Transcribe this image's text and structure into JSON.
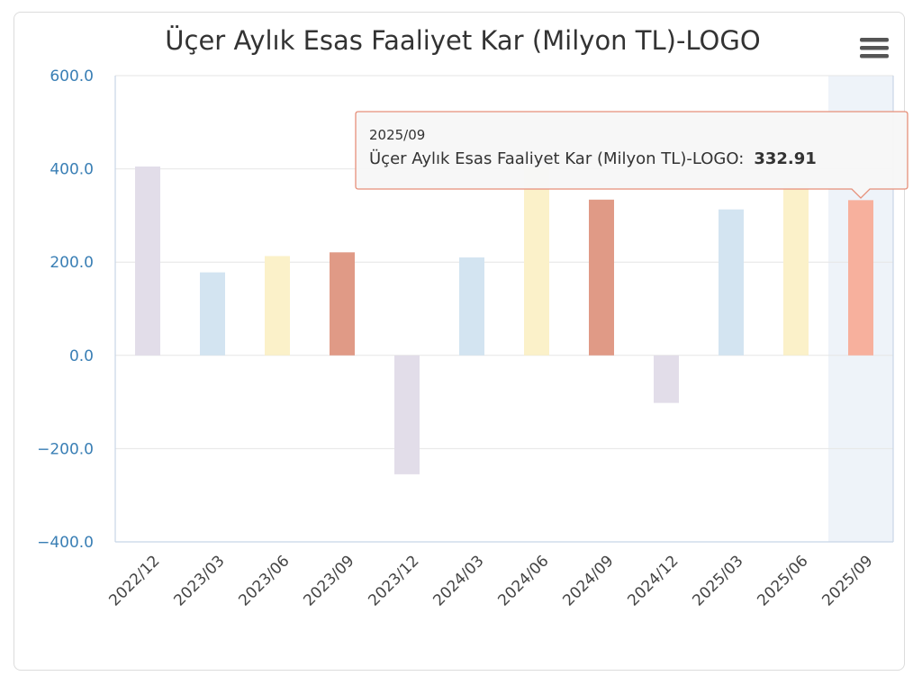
{
  "colors": {
    "palette": [
      "#e2dde9",
      "#d3e4f1",
      "#fbf1c9",
      "#e09a86"
    ],
    "highlight_bar": "#f7b09d",
    "hover_band": "#eef3f9",
    "tooltip_border": "#e6907a"
  },
  "menu": {
    "icon": "hamburger-menu-icon"
  },
  "chart_data": {
    "type": "bar",
    "title": "Üçer Aylık Esas Faaliyet Kar (Milyon TL)-LOGO",
    "xlabel": "",
    "ylabel": "",
    "ylim": [
      -400,
      600
    ],
    "yticks": [
      "600.0",
      "400.0",
      "200.0",
      "0.0",
      "−200.0",
      "−400.0"
    ],
    "ytick_values": [
      600,
      400,
      200,
      0,
      -200,
      -400
    ],
    "grid": true,
    "categories": [
      "2022/12",
      "2023/03",
      "2023/06",
      "2023/09",
      "2023/12",
      "2024/03",
      "2024/06",
      "2024/09",
      "2024/12",
      "2025/03",
      "2025/06",
      "2025/09"
    ],
    "series": [
      {
        "name": "Üçer Aylık Esas Faaliyet Kar (Milyon TL)-LOGO",
        "values": [
          405,
          178,
          213,
          221,
          -255,
          210,
          402,
          334,
          -102,
          313,
          370,
          332.91
        ]
      }
    ],
    "highlighted_index": 11,
    "tooltip": {
      "header": "2025/09",
      "label": "Üçer Aylık Esas Faaliyet Kar (Milyon TL)-LOGO:",
      "value": "332.91"
    }
  }
}
